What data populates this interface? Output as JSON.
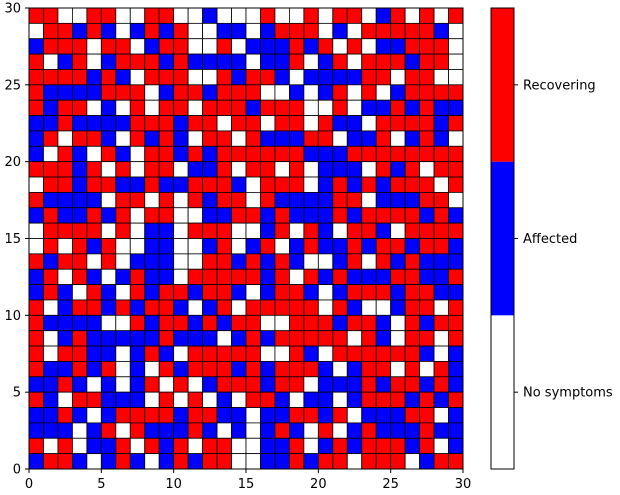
{
  "chart_data": {
    "type": "heatmap",
    "title": "",
    "xlabel": "",
    "ylabel": "",
    "xlim": [
      0,
      30
    ],
    "ylim": [
      0,
      30
    ],
    "grid": false,
    "x_ticks": [
      0,
      5,
      10,
      15,
      20,
      25,
      30
    ],
    "y_ticks": [
      0,
      5,
      10,
      15,
      20,
      25,
      30
    ],
    "grid_size": [
      30,
      30
    ],
    "states": [
      {
        "value": 0,
        "label": "No symptoms",
        "color": "#ffffff"
      },
      {
        "value": 1,
        "label": "Affected",
        "color": "#0000ff"
      },
      {
        "value": 2,
        "label": "Recovering",
        "color": "#ff0000"
      }
    ],
    "colorbar": {
      "position": "right",
      "labels": [
        "No symptoms",
        "Affected",
        "Recovering"
      ]
    },
    "cell_edge_color": "#000000",
    "grid_rows_top_to_bottom": [
      "220022002200100020020220120202",
      "022121012120011012220102222210",
      "122202201220020111212020112220",
      "201201222121111011201202221220",
      "222212102220021221011112202200",
      "211112220122122200101202012222",
      "212201020220222122200201121211",
      "112111122212202202202110222212",
      "120221021210220211122011201210",
      "102102102212122222211122222222",
      "222120202201120220201110212022",
      "022122112112221022201212122202",
      "211110220202122021111220111220",
      "121121202200112212111212222121",
      "022220201102220012021022102222",
      "020212001100120120121121221221",
      "212202011100221212100120212111",
      "120210121102222212021211122112",
      "121021021221221012210122212211",
      "201221212210120222220210012202",
      "211110021221212200222122102122",
      "201211111211101212222202102202",
      "202211012102222200210222222101",
      "211212010212221212221012202021",
      "112101012020122212201112122121",
      "210221110202010221011012221212",
      "112101222212211011221201112201",
      "111012021112101012102012111211",
      "202011202120220011201212221201",
      "122101210121220011212202220122"
    ]
  }
}
